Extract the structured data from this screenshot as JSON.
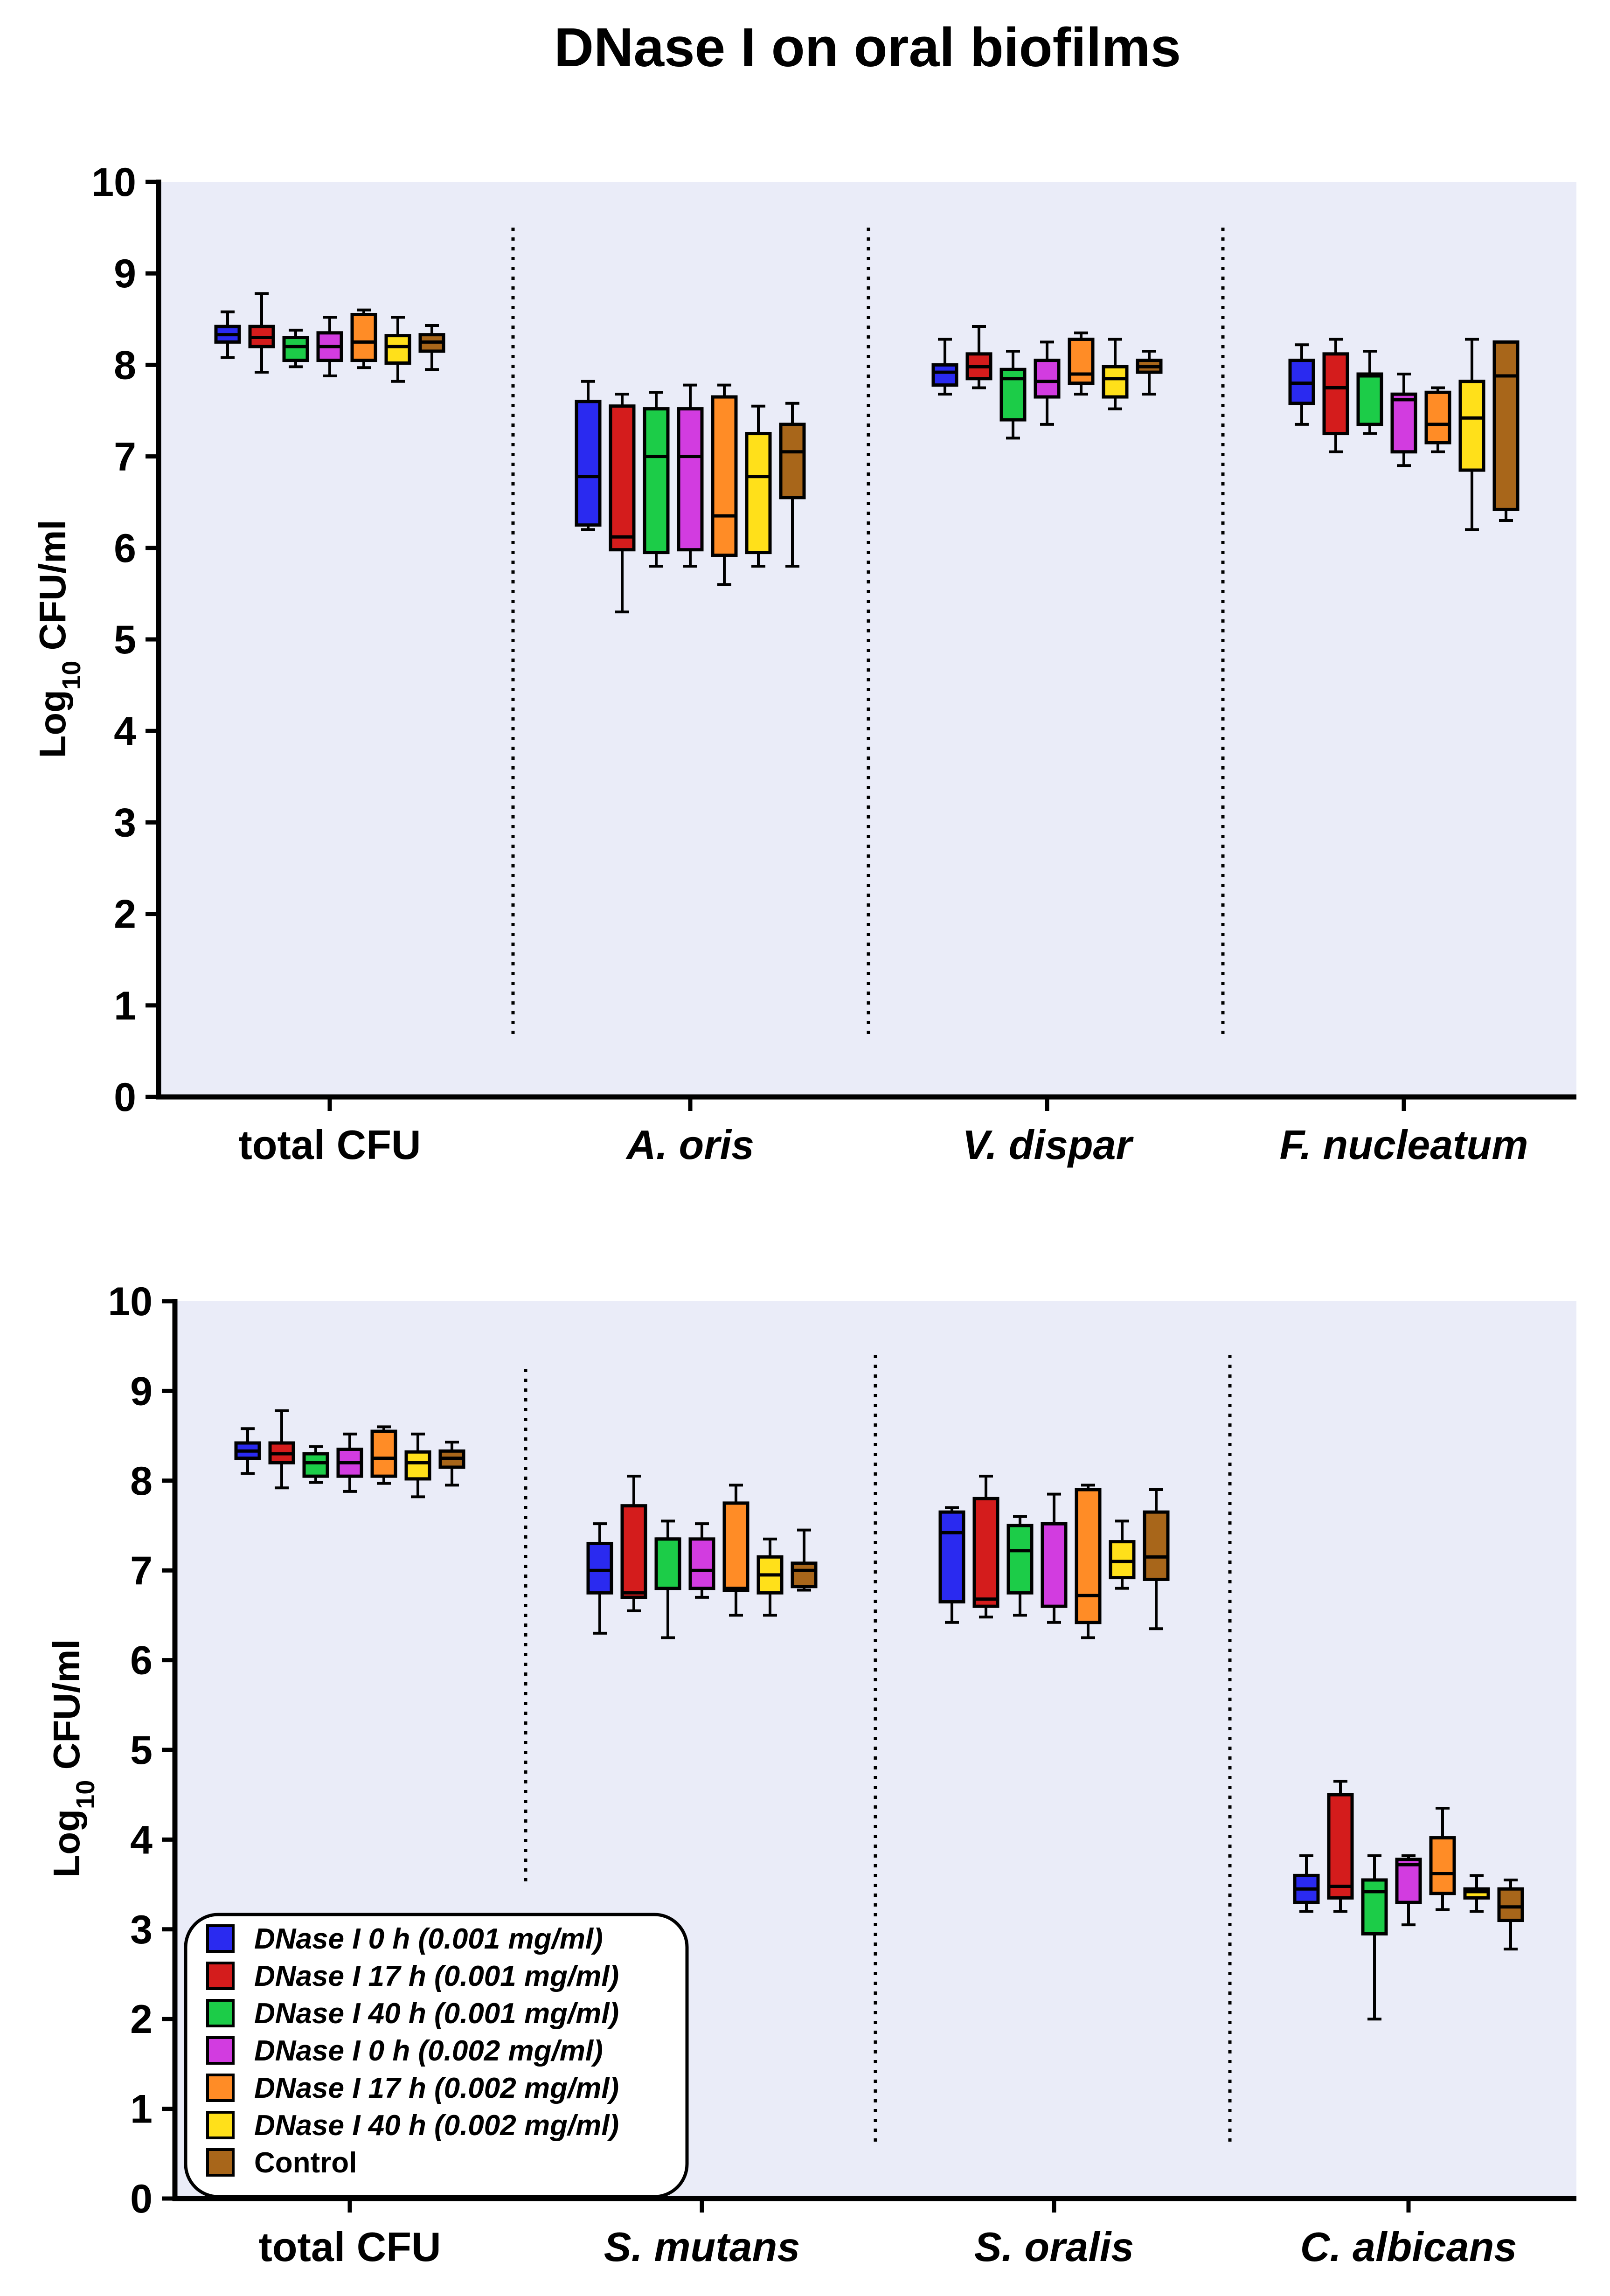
{
  "figure_title": "DNase I on oral biofilms",
  "legend": {
    "entries": [
      {
        "label": "DNase I 0 h (0.001 mg/ml)",
        "color": "#2a2af0",
        "italic": true
      },
      {
        "label": "DNase I 17 h (0.001 mg/ml)",
        "color": "#d41c1c",
        "italic": true
      },
      {
        "label": "DNase I 40 h (0.001 mg/ml)",
        "color": "#1ccc48",
        "italic": true
      },
      {
        "label": "DNase I 0 h (0.002 mg/ml)",
        "color": "#d23ce0",
        "italic": true
      },
      {
        "label": "DNase I 17 h (0.002 mg/ml)",
        "color": "#ff8c26",
        "italic": true
      },
      {
        "label": "DNase I 40 h (0.002 mg/ml)",
        "color": "#ffe01a",
        "italic": true
      },
      {
        "label": "Control",
        "color": "#a8661a",
        "italic": false
      }
    ]
  },
  "colors": {
    "plot_background": "#eaecf8",
    "box_stroke": "#000000"
  },
  "chart_data": [
    {
      "type": "box",
      "ylabel_main": "Log",
      "ylabel_sub": "10",
      "ylabel_rest": " CFU/ml",
      "ylim": [
        0,
        10
      ],
      "yticks": [
        "0",
        "1",
        "2",
        "3",
        "4",
        "5",
        "6",
        "7",
        "8",
        "9",
        "10"
      ],
      "categories": [
        {
          "label": "total CFU",
          "italic": false,
          "boxes": [
            [
              8.08,
              8.25,
              8.33,
              8.42,
              8.58
            ],
            [
              7.92,
              8.2,
              8.3,
              8.42,
              8.78
            ],
            [
              7.98,
              8.05,
              8.2,
              8.3,
              8.38
            ],
            [
              7.88,
              8.05,
              8.2,
              8.35,
              8.52
            ],
            [
              7.97,
              8.05,
              8.25,
              8.55,
              8.6
            ],
            [
              7.82,
              8.02,
              8.2,
              8.32,
              8.52
            ],
            [
              7.95,
              8.15,
              8.25,
              8.33,
              8.43
            ]
          ]
        },
        {
          "label": "A. oris",
          "italic": true,
          "boxes": [
            [
              6.2,
              6.25,
              6.78,
              7.6,
              7.82
            ],
            [
              5.3,
              5.98,
              6.12,
              7.55,
              7.68
            ],
            [
              5.8,
              5.95,
              7.0,
              7.52,
              7.7
            ],
            [
              5.8,
              5.98,
              7.0,
              7.52,
              7.78
            ],
            [
              5.6,
              5.92,
              6.35,
              7.65,
              7.78
            ],
            [
              5.8,
              5.95,
              6.78,
              7.25,
              7.55
            ],
            [
              5.8,
              6.55,
              7.05,
              7.35,
              7.58
            ]
          ]
        },
        {
          "label": "V. dispar",
          "italic": true,
          "boxes": [
            [
              7.68,
              7.78,
              7.92,
              8.0,
              8.28
            ],
            [
              7.75,
              7.85,
              7.98,
              8.12,
              8.42
            ],
            [
              7.2,
              7.4,
              7.85,
              7.95,
              8.15
            ],
            [
              7.35,
              7.65,
              7.82,
              8.05,
              8.25
            ],
            [
              7.68,
              7.8,
              7.9,
              8.28,
              8.35
            ],
            [
              7.52,
              7.65,
              7.85,
              7.98,
              8.28
            ],
            [
              7.68,
              7.92,
              7.98,
              8.05,
              8.15
            ]
          ]
        },
        {
          "label": "F. nucleatum",
          "italic": true,
          "boxes": [
            [
              7.35,
              7.58,
              7.8,
              8.05,
              8.22
            ],
            [
              7.05,
              7.25,
              7.75,
              8.12,
              8.28
            ],
            [
              7.25,
              7.35,
              7.88,
              7.9,
              8.15
            ],
            [
              6.9,
              7.05,
              7.62,
              7.68,
              7.9
            ],
            [
              7.05,
              7.15,
              7.35,
              7.7,
              7.75
            ],
            [
              6.2,
              6.85,
              7.42,
              7.82,
              8.28
            ],
            [
              6.3,
              6.42,
              7.88,
              8.25,
              8.25
            ]
          ]
        }
      ]
    },
    {
      "type": "box",
      "ylabel_main": "Log",
      "ylabel_sub": "10",
      "ylabel_rest": " CFU/ml",
      "ylim": [
        0,
        10
      ],
      "yticks": [
        "0",
        "1",
        "2",
        "3",
        "4",
        "5",
        "6",
        "7",
        "8",
        "9",
        "10"
      ],
      "categories": [
        {
          "label": "total CFU",
          "italic": false,
          "boxes": [
            [
              8.08,
              8.25,
              8.33,
              8.42,
              8.58
            ],
            [
              7.92,
              8.2,
              8.3,
              8.42,
              8.78
            ],
            [
              7.98,
              8.05,
              8.2,
              8.3,
              8.38
            ],
            [
              7.88,
              8.05,
              8.2,
              8.35,
              8.52
            ],
            [
              7.97,
              8.05,
              8.25,
              8.55,
              8.6
            ],
            [
              7.82,
              8.02,
              8.2,
              8.32,
              8.52
            ],
            [
              7.95,
              8.15,
              8.25,
              8.33,
              8.43
            ]
          ]
        },
        {
          "label": "S. mutans",
          "italic": true,
          "boxes": [
            [
              6.3,
              6.75,
              7.0,
              7.3,
              7.52
            ],
            [
              6.55,
              6.7,
              6.75,
              7.72,
              8.05
            ],
            [
              6.25,
              6.8,
              7.35,
              7.35,
              7.55
            ],
            [
              6.7,
              6.8,
              7.0,
              7.35,
              7.52
            ],
            [
              6.5,
              6.78,
              6.8,
              7.75,
              7.95
            ],
            [
              6.5,
              6.75,
              6.95,
              7.15,
              7.35
            ],
            [
              6.78,
              6.82,
              7.0,
              7.08,
              7.45
            ]
          ]
        },
        {
          "label": "S. oralis",
          "italic": true,
          "boxes": [
            [
              6.42,
              6.65,
              7.42,
              7.65,
              7.7
            ],
            [
              6.48,
              6.6,
              6.68,
              7.8,
              8.05
            ],
            [
              6.5,
              6.75,
              7.22,
              7.5,
              7.6
            ],
            [
              6.42,
              6.6,
              7.52,
              7.52,
              7.85
            ],
            [
              6.25,
              6.42,
              6.72,
              7.9,
              7.95
            ],
            [
              6.8,
              6.92,
              7.1,
              7.32,
              7.55
            ],
            [
              6.35,
              6.9,
              7.15,
              7.65,
              7.9
            ]
          ]
        },
        {
          "label": "C. albicans",
          "italic": true,
          "boxes": [
            [
              3.2,
              3.3,
              3.45,
              3.6,
              3.82
            ],
            [
              3.2,
              3.35,
              3.48,
              4.5,
              4.65
            ],
            [
              2.0,
              2.95,
              3.42,
              3.55,
              3.82
            ],
            [
              3.05,
              3.3,
              3.72,
              3.78,
              3.82
            ],
            [
              3.22,
              3.4,
              3.62,
              4.02,
              4.35
            ],
            [
              3.2,
              3.35,
              3.42,
              3.45,
              3.6
            ],
            [
              2.78,
              3.1,
              3.25,
              3.45,
              3.55
            ]
          ]
        }
      ]
    }
  ]
}
